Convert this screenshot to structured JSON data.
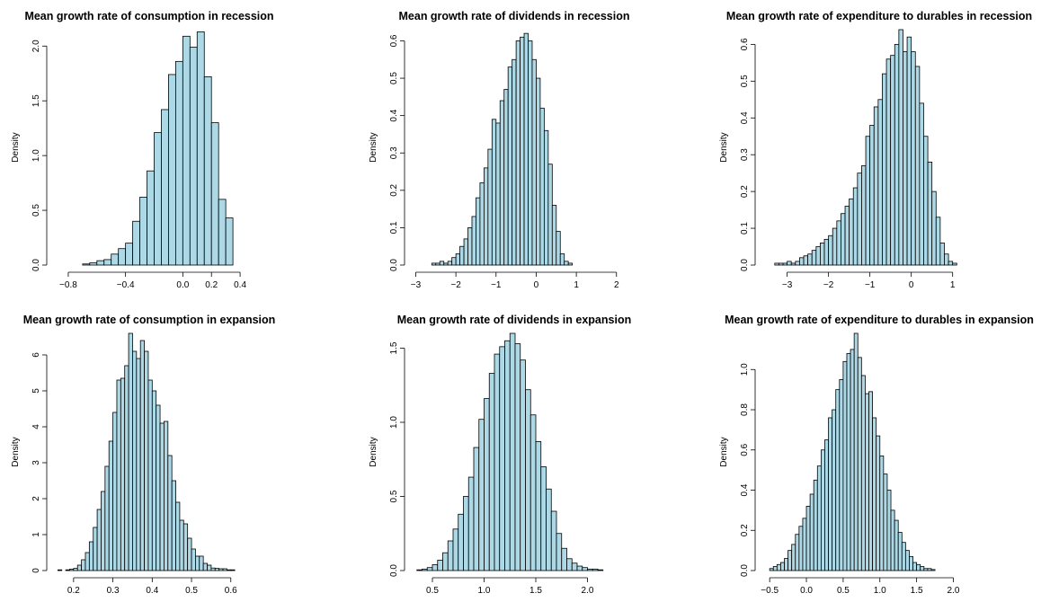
{
  "colors": {
    "bar_fill": "#add8e6",
    "bar_stroke": "#000000",
    "background": "#ffffff"
  },
  "chart_data": [
    {
      "type": "bar",
      "title": "Mean growth rate of consumption in recession",
      "ylabel": "Density",
      "xlim": [
        -0.9,
        0.5
      ],
      "ylim": [
        0,
        2.15
      ],
      "xticks": [
        "-0.8",
        "-0.4",
        "0.0",
        "0.2",
        "0.4"
      ],
      "yticks": [
        "0.0",
        "0.5",
        "1.0",
        "1.5",
        "2.0"
      ],
      "bin_start": -0.85,
      "bin_width": 0.05,
      "values": [
        0.0,
        0.0,
        0.0,
        0.01,
        0.02,
        0.04,
        0.05,
        0.1,
        0.15,
        0.2,
        0.4,
        0.62,
        0.86,
        1.21,
        1.42,
        1.74,
        1.86,
        2.09,
        1.99,
        2.13,
        1.72,
        1.3,
        0.6,
        0.43
      ]
    },
    {
      "type": "bar",
      "title": "Mean growth rate of dividends in recession",
      "ylabel": "Density",
      "xlim": [
        -3.1,
        2.05
      ],
      "ylim": [
        0,
        0.63
      ],
      "xticks": [
        "-3",
        "-2",
        "-1",
        "0",
        "1",
        "2"
      ],
      "yticks": [
        "0.0",
        "0.1",
        "0.2",
        "0.3",
        "0.4",
        "0.5",
        "0.6"
      ],
      "bin_start": -3.0,
      "bin_width": 0.1,
      "values": [
        0.0,
        0.0,
        0.0,
        0.0,
        0.005,
        0.005,
        0.01,
        0.005,
        0.01,
        0.02,
        0.03,
        0.05,
        0.07,
        0.1,
        0.13,
        0.18,
        0.22,
        0.26,
        0.31,
        0.39,
        0.38,
        0.44,
        0.47,
        0.53,
        0.55,
        0.6,
        0.61,
        0.62,
        0.6,
        0.55,
        0.5,
        0.42,
        0.36,
        0.27,
        0.16,
        0.09,
        0.03,
        0.01,
        0.005,
        0.0
      ]
    },
    {
      "type": "bar",
      "title": "Mean growth rate of expenditure to durables in recession",
      "ylabel": "Density",
      "xlim": [
        -3.6,
        1.55
      ],
      "ylim": [
        0,
        0.64
      ],
      "xticks": [
        "-3",
        "-2",
        "-1",
        "0",
        "1"
      ],
      "yticks": [
        "0.0",
        "0.1",
        "0.2",
        "0.3",
        "0.4",
        "0.5",
        "0.6"
      ],
      "bin_start": -3.5,
      "bin_width": 0.1,
      "values": [
        0.0,
        0.0,
        0.005,
        0.005,
        0.005,
        0.01,
        0.005,
        0.01,
        0.02,
        0.025,
        0.03,
        0.04,
        0.05,
        0.06,
        0.07,
        0.08,
        0.1,
        0.12,
        0.14,
        0.16,
        0.18,
        0.21,
        0.25,
        0.27,
        0.35,
        0.38,
        0.43,
        0.45,
        0.52,
        0.56,
        0.57,
        0.6,
        0.64,
        0.58,
        0.62,
        0.58,
        0.54,
        0.44,
        0.35,
        0.28,
        0.2,
        0.13,
        0.06,
        0.03,
        0.01,
        0.005
      ]
    },
    {
      "type": "bar",
      "title": "Mean growth rate of consumption in expansion",
      "ylabel": "Density",
      "xlim": [
        0.15,
        0.66
      ],
      "ylim": [
        0,
        6.6
      ],
      "xticks": [
        "0.2",
        "0.3",
        "0.4",
        "0.5",
        "0.6"
      ],
      "yticks": [
        "0",
        "1",
        "2",
        "3",
        "4",
        "5",
        "6"
      ],
      "bin_start": 0.16,
      "bin_width": 0.01,
      "values": [
        0.02,
        0.0,
        0.02,
        0.04,
        0.06,
        0.15,
        0.3,
        0.5,
        0.8,
        1.2,
        1.7,
        2.2,
        2.9,
        3.6,
        4.4,
        5.3,
        5.35,
        5.7,
        6.6,
        6.1,
        5.9,
        6.4,
        6.1,
        5.3,
        5.0,
        4.6,
        4.1,
        4.15,
        3.2,
        2.5,
        1.9,
        1.4,
        1.3,
        0.9,
        0.6,
        0.4,
        0.4,
        0.2,
        0.15,
        0.07,
        0.06,
        0.05,
        0.05,
        0.02,
        0.02
      ]
    },
    {
      "type": "bar",
      "title": "Mean growth rate of dividends in expansion",
      "ylabel": "Density",
      "xlim": [
        0.3,
        2.3
      ],
      "ylim": [
        0,
        1.6
      ],
      "xticks": [
        "0.5",
        "1.0",
        "1.5",
        "2.0"
      ],
      "yticks": [
        "0.0",
        "0.5",
        "1.0",
        "1.5"
      ],
      "bin_start": 0.35,
      "bin_width": 0.05,
      "values": [
        0.005,
        0.01,
        0.02,
        0.04,
        0.07,
        0.12,
        0.2,
        0.28,
        0.38,
        0.5,
        0.63,
        0.83,
        1.02,
        1.16,
        1.33,
        1.46,
        1.51,
        1.55,
        1.6,
        1.53,
        1.42,
        1.22,
        1.05,
        0.87,
        0.7,
        0.55,
        0.4,
        0.25,
        0.15,
        0.08,
        0.05,
        0.03,
        0.02,
        0.01,
        0.01,
        0.005,
        0.0,
        0.0
      ]
    },
    {
      "type": "bar",
      "title": "Mean growth rate of expenditure to durables in expansion",
      "ylabel": "Density",
      "xlim": [
        -0.6,
        2.3
      ],
      "ylim": [
        0,
        1.18
      ],
      "xticks": [
        "-0.5",
        "0.0",
        "0.5",
        "1.0",
        "1.5",
        "2.0"
      ],
      "yticks": [
        "0.0",
        "0.2",
        "0.4",
        "0.6",
        "0.8",
        "1.0"
      ],
      "bin_start": -0.5,
      "bin_width": 0.05,
      "values": [
        0.01,
        0.02,
        0.03,
        0.04,
        0.06,
        0.1,
        0.13,
        0.18,
        0.22,
        0.26,
        0.32,
        0.38,
        0.45,
        0.52,
        0.6,
        0.65,
        0.76,
        0.8,
        0.9,
        0.95,
        1.04,
        1.08,
        1.1,
        1.18,
        1.06,
        0.97,
        0.88,
        0.89,
        0.76,
        0.67,
        0.57,
        0.48,
        0.4,
        0.3,
        0.25,
        0.19,
        0.14,
        0.1,
        0.07,
        0.04,
        0.03,
        0.02,
        0.01,
        0.01,
        0.005,
        0.0
      ]
    }
  ]
}
